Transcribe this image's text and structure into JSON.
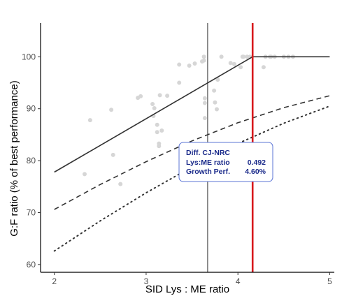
{
  "chart_data": {
    "type": "scatter",
    "xlabel": "SID Lys : ME ratio",
    "ylabel": "G:F ratio (% of best performance)",
    "xlim": [
      1.85,
      5.05
    ],
    "ylim": [
      58.5,
      106.5
    ],
    "x_ticks": [
      2,
      3,
      4,
      5
    ],
    "y_ticks": [
      60,
      70,
      80,
      90,
      100
    ],
    "grid": false,
    "colors": {
      "points": "#d6d6d6",
      "lines": "#333333",
      "vline_optimum": "#d7191c",
      "vline_other": "#333333",
      "annotation_border": "#5b74d6",
      "annotation_text": "#1a2a8a"
    },
    "points": [
      [
        2.33,
        77.4
      ],
      [
        2.39,
        87.8
      ],
      [
        2.62,
        89.8
      ],
      [
        2.64,
        81.1
      ],
      [
        2.72,
        75.5
      ],
      [
        2.91,
        92.1
      ],
      [
        2.94,
        92.4
      ],
      [
        3.07,
        90.9
      ],
      [
        3.08,
        88.6
      ],
      [
        3.09,
        90.1
      ],
      [
        3.12,
        86.9
      ],
      [
        3.12,
        85.5
      ],
      [
        3.14,
        83.3
      ],
      [
        3.14,
        82.8
      ],
      [
        3.15,
        92.6
      ],
      [
        3.17,
        85.8
      ],
      [
        3.23,
        92.5
      ],
      [
        3.36,
        95.0
      ],
      [
        3.36,
        98.5
      ],
      [
        3.47,
        98.3
      ],
      [
        3.53,
        98.7
      ],
      [
        3.61,
        99.1
      ],
      [
        3.63,
        100.0
      ],
      [
        3.63,
        99.3
      ],
      [
        3.64,
        92.0
      ],
      [
        3.64,
        88.2
      ],
      [
        3.64,
        91.1
      ],
      [
        3.74,
        93.5
      ],
      [
        3.75,
        91.2
      ],
      [
        3.77,
        89.9
      ],
      [
        3.78,
        95.6
      ],
      [
        3.82,
        100.0
      ],
      [
        3.92,
        98.8
      ],
      [
        3.96,
        98.6
      ],
      [
        4.03,
        98.0
      ],
      [
        4.05,
        100.0
      ],
      [
        4.06,
        100.0
      ],
      [
        4.1,
        100.0
      ],
      [
        4.13,
        100.0
      ],
      [
        4.28,
        98.0
      ],
      [
        4.3,
        100.0
      ],
      [
        4.35,
        100.0
      ],
      [
        4.36,
        100.0
      ],
      [
        4.4,
        100.0
      ],
      [
        4.5,
        100.0
      ],
      [
        4.55,
        100.0
      ],
      [
        4.6,
        100.0
      ]
    ],
    "series": [
      {
        "style": "solid",
        "x": [
          2,
          4.16,
          5
        ],
        "y": [
          77.8,
          100,
          100
        ]
      },
      {
        "style": "dashed",
        "x": [
          2,
          2.5,
          3,
          3.5,
          4,
          4.5,
          5
        ],
        "y": [
          70.6,
          75.4,
          79.8,
          83.8,
          87.3,
          90.2,
          92.5
        ]
      },
      {
        "style": "dotted",
        "x": [
          2,
          2.5,
          3,
          3.5,
          4,
          4.5,
          5
        ],
        "y": [
          62.6,
          68.4,
          73.8,
          78.8,
          83.3,
          87.2,
          90.5
        ]
      }
    ],
    "vlines": [
      {
        "x": 3.67,
        "role": "other"
      },
      {
        "x": 4.16,
        "role": "optimum"
      }
    ],
    "annotation": {
      "title": "Diff. CJ-NRC",
      "row1_label": "Lys:ME ratio",
      "row1_value": "0.492",
      "row2_label": "Growth Perf.",
      "row2_value": "4.60%"
    }
  }
}
